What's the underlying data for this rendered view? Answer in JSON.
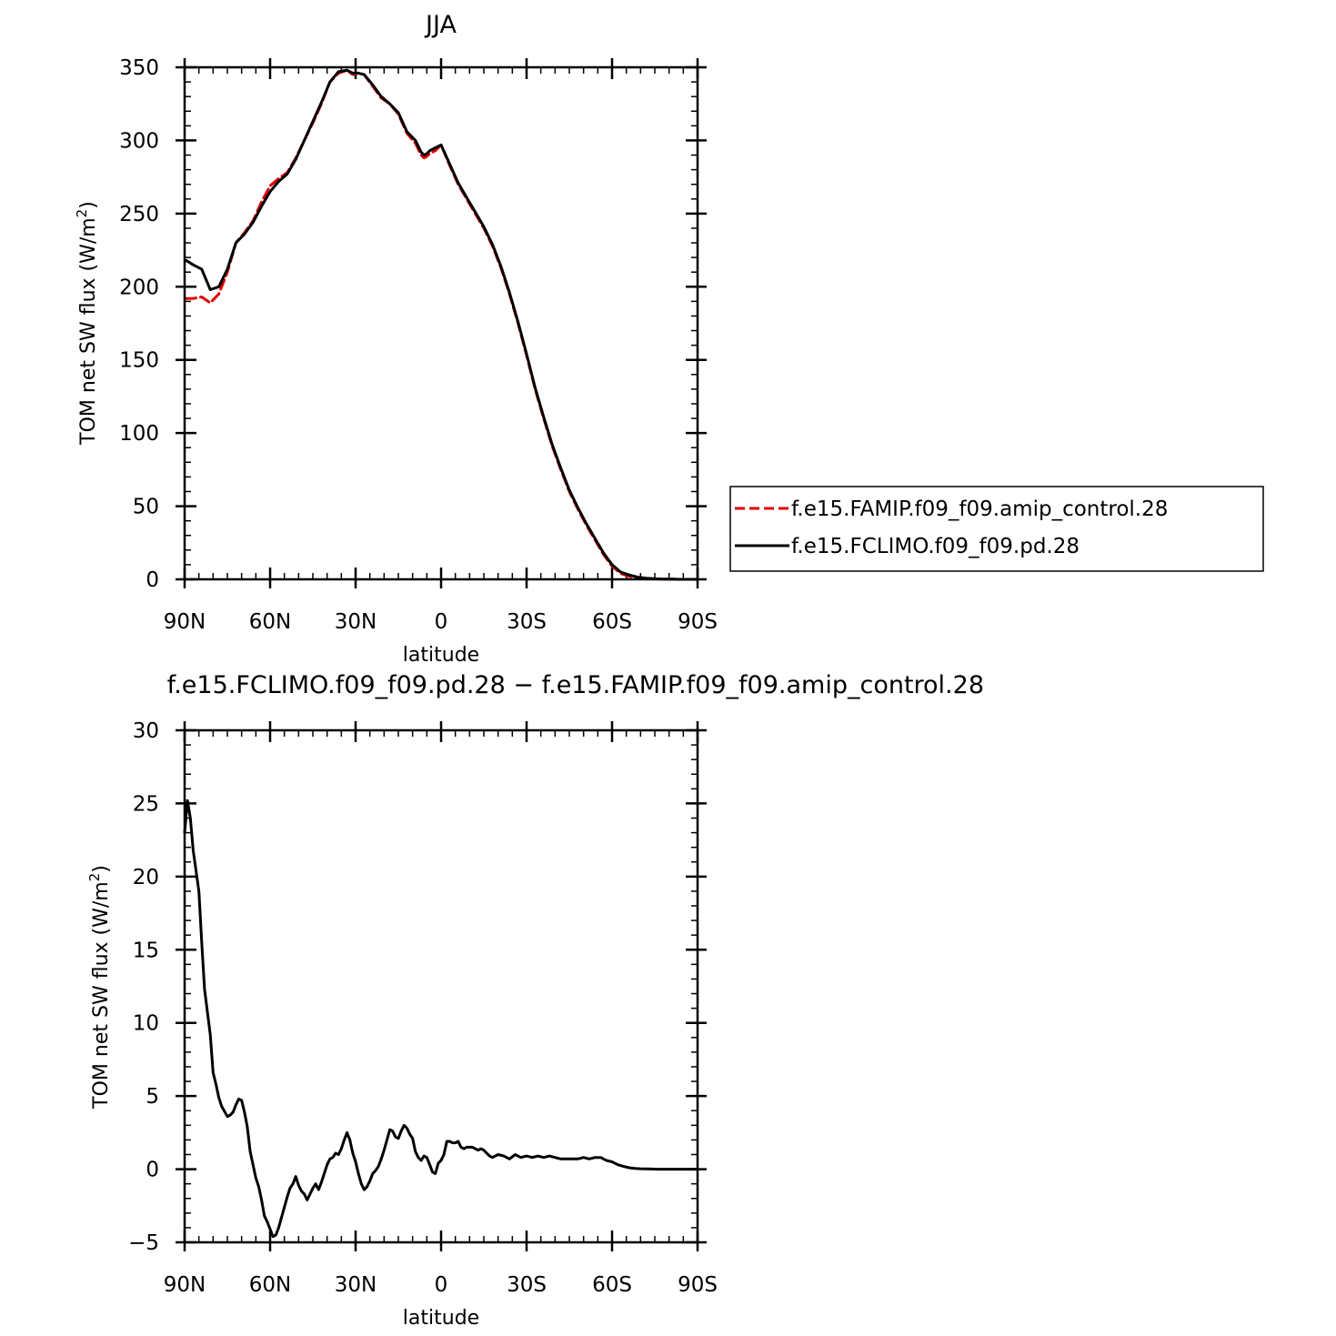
{
  "chart_data": [
    {
      "type": "line",
      "title": "JJA",
      "xlabel": "latitude",
      "ylabel": "TOM net SW flux (W/m",
      "ylabel_superscript": "2",
      "ylabel_suffix": ")",
      "xlim": [
        90,
        -90
      ],
      "ylim": [
        0,
        350
      ],
      "x_ticks": [
        {
          "value": 90,
          "label": "90N"
        },
        {
          "value": 60,
          "label": "60N"
        },
        {
          "value": 30,
          "label": "30N"
        },
        {
          "value": 0,
          "label": "0"
        },
        {
          "value": -30,
          "label": "30S"
        },
        {
          "value": -60,
          "label": "60S"
        },
        {
          "value": -90,
          "label": "90S"
        }
      ],
      "y_ticks": [
        {
          "value": 0,
          "label": "0"
        },
        {
          "value": 50,
          "label": "50"
        },
        {
          "value": 100,
          "label": "100"
        },
        {
          "value": 150,
          "label": "150"
        },
        {
          "value": 200,
          "label": "200"
        },
        {
          "value": 250,
          "label": "250"
        },
        {
          "value": 300,
          "label": "300"
        },
        {
          "value": 350,
          "label": "350"
        }
      ],
      "legend_position": "right",
      "series": [
        {
          "name": "f.e15.FAMIP.f09_f09.amip_control.28",
          "color": "#e00000",
          "dash": "dashed",
          "x": [
            89.5,
            87,
            84,
            81,
            78,
            75,
            72,
            69,
            66,
            63,
            60,
            57,
            54,
            51,
            48,
            45,
            42,
            39,
            36,
            33,
            31,
            29,
            27,
            24,
            21,
            18,
            15,
            12,
            9,
            7,
            6,
            5,
            4,
            2,
            0,
            -3,
            -6,
            -9,
            -12,
            -15,
            -18,
            -21,
            -24,
            -27,
            -30,
            -33,
            -36,
            -39,
            -42,
            -45,
            -48,
            -51,
            -54,
            -57,
            -60,
            -63,
            -66,
            -69,
            -72,
            -75,
            -78,
            -81,
            -84,
            -87,
            -89.5
          ],
          "y": [
            192,
            192,
            193,
            189,
            195,
            210,
            230,
            237,
            245,
            258,
            269,
            274,
            278,
            288,
            300,
            312,
            325,
            340,
            346,
            348,
            345,
            346,
            345,
            337,
            329,
            325,
            318,
            305,
            298,
            290,
            288,
            289,
            291,
            293,
            297,
            283,
            270,
            260,
            250,
            240,
            228,
            213,
            195,
            175,
            153,
            130,
            110,
            91,
            75,
            60,
            48,
            37,
            27,
            17,
            9,
            4,
            2,
            1,
            0.5,
            0.3,
            0.2,
            0.1,
            0,
            0,
            0
          ]
        },
        {
          "name": "f.e15.FCLIMO.f09_f09.pd.28",
          "color": "#000000",
          "dash": "solid",
          "x": [
            89.5,
            87,
            84,
            81,
            78,
            75,
            72,
            69,
            66,
            63,
            60,
            57,
            54,
            51,
            48,
            45,
            42,
            39,
            36,
            33,
            31,
            29,
            27,
            24,
            21,
            18,
            15,
            12,
            9,
            7,
            6,
            5,
            4,
            2,
            0,
            -3,
            -6,
            -9,
            -12,
            -15,
            -18,
            -21,
            -24,
            -27,
            -30,
            -33,
            -36,
            -39,
            -42,
            -45,
            -48,
            -51,
            -54,
            -57,
            -60,
            -63,
            -66,
            -69,
            -72,
            -75,
            -78,
            -81,
            -84,
            -87,
            -89.5
          ],
          "y": [
            218,
            215,
            212,
            198,
            200,
            212,
            230,
            236,
            244,
            255,
            265,
            272,
            277,
            287,
            300,
            313,
            326,
            340,
            347,
            348,
            346,
            346,
            345,
            338,
            330,
            325,
            319,
            306,
            300,
            292,
            290,
            291,
            293,
            295,
            297,
            284,
            271,
            261,
            251,
            241,
            229,
            214,
            196,
            176,
            154,
            131,
            111,
            92,
            76,
            61,
            49,
            38,
            28,
            18,
            10,
            5,
            3,
            1.5,
            0.8,
            0.4,
            0.2,
            0.1,
            0,
            0,
            0
          ]
        }
      ]
    },
    {
      "type": "line",
      "title": "f.e15.FCLIMO.f09_f09.pd.28 − f.e15.FAMIP.f09_f09.amip_control.28",
      "xlabel": "latitude",
      "ylabel": "TOM net SW flux (W/m",
      "ylabel_superscript": "2",
      "ylabel_suffix": ")",
      "xlim": [
        90,
        -90
      ],
      "ylim": [
        -5,
        30
      ],
      "x_ticks": [
        {
          "value": 90,
          "label": "90N"
        },
        {
          "value": 60,
          "label": "60N"
        },
        {
          "value": 30,
          "label": "30N"
        },
        {
          "value": 0,
          "label": "0"
        },
        {
          "value": -30,
          "label": "30S"
        },
        {
          "value": -60,
          "label": "60S"
        },
        {
          "value": -90,
          "label": "90S"
        }
      ],
      "y_ticks": [
        {
          "value": -5,
          "label": "−5"
        },
        {
          "value": 0,
          "label": "0"
        },
        {
          "value": 5,
          "label": "5"
        },
        {
          "value": 10,
          "label": "10"
        },
        {
          "value": 15,
          "label": "15"
        },
        {
          "value": 20,
          "label": "20"
        },
        {
          "value": 25,
          "label": "25"
        },
        {
          "value": 30,
          "label": "30"
        }
      ],
      "series": [
        {
          "color": "#000000",
          "dash": "solid",
          "x": [
            90,
            89,
            88,
            87,
            85,
            84,
            83,
            81,
            80,
            79,
            78,
            77,
            75,
            74,
            73,
            72,
            71,
            70,
            69,
            68,
            67,
            66,
            65,
            64,
            63,
            62,
            61,
            60,
            59,
            58,
            57,
            56,
            55,
            54,
            53,
            52,
            51,
            50,
            49,
            48,
            47,
            46,
            45,
            44,
            43,
            42,
            41,
            40,
            39,
            38,
            37,
            36,
            35,
            34,
            33,
            32,
            31,
            30,
            29,
            28,
            27,
            26,
            25,
            24,
            23,
            22,
            21,
            20,
            19,
            18,
            17,
            16,
            15,
            14,
            13,
            12,
            11,
            10,
            9,
            8,
            7,
            6,
            5,
            4,
            3,
            2,
            1,
            0,
            -1,
            -2,
            -3,
            -4,
            -5,
            -6,
            -7,
            -8,
            -9,
            -10,
            -11,
            -12,
            -13,
            -14,
            -15,
            -16,
            -17,
            -18,
            -20,
            -22,
            -24,
            -26,
            -28,
            -30,
            -32,
            -34,
            -36,
            -38,
            -40,
            -42,
            -44,
            -46,
            -48,
            -50,
            -52,
            -54,
            -56,
            -58,
            -60,
            -62,
            -64,
            -66,
            -68,
            -70,
            -72,
            -74,
            -76,
            -78,
            -80,
            -82,
            -84,
            -86,
            -88,
            -90
          ],
          "y": [
            23,
            25.2,
            24,
            21.8,
            19,
            15.5,
            12.3,
            9.2,
            6.6,
            5.8,
            4.9,
            4.3,
            3.6,
            3.7,
            3.9,
            4.4,
            4.8,
            4.7,
            3.9,
            2.9,
            1.2,
            0.3,
            -0.6,
            -1.2,
            -2.1,
            -3.2,
            -3.6,
            -4.1,
            -4.6,
            -4.5,
            -4.0,
            -3.3,
            -2.6,
            -1.9,
            -1.3,
            -1.0,
            -0.5,
            -1.1,
            -1.5,
            -1.7,
            -2.1,
            -1.7,
            -1.3,
            -1.0,
            -1.4,
            -0.9,
            -0.3,
            0.3,
            0.7,
            0.8,
            1.1,
            1.0,
            1.4,
            2.0,
            2.5,
            2.0,
            1.1,
            0.5,
            -0.3,
            -1.0,
            -1.4,
            -1.2,
            -0.8,
            -0.3,
            -0.1,
            0.2,
            0.7,
            1.3,
            2.0,
            2.7,
            2.6,
            2.2,
            2.1,
            2.6,
            3.0,
            2.8,
            2.4,
            2.1,
            1.2,
            0.8,
            0.6,
            0.9,
            0.8,
            0.3,
            -0.2,
            -0.3,
            0.4,
            0.6,
            1.0,
            1.9,
            1.9,
            1.8,
            1.8,
            1.9,
            1.5,
            1.4,
            1.5,
            1.5,
            1.5,
            1.4,
            1.3,
            1.4,
            1.3,
            1.1,
            0.9,
            0.8,
            1.0,
            0.9,
            0.7,
            1.0,
            0.8,
            0.9,
            0.8,
            0.9,
            0.8,
            0.9,
            0.8,
            0.7,
            0.7,
            0.7,
            0.7,
            0.8,
            0.7,
            0.8,
            0.8,
            0.6,
            0.5,
            0.3,
            0.2,
            0.1,
            0.05,
            0.03,
            0.02,
            0.01,
            0,
            0,
            0,
            0,
            0,
            0,
            0,
            0
          ]
        }
      ]
    }
  ]
}
